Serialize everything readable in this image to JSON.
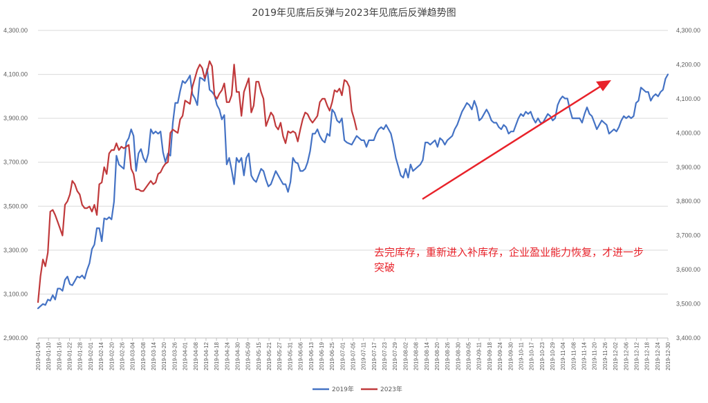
{
  "chart_data": {
    "type": "line",
    "title": "2019年见底后反弹与2023年见底后反弹趋势图",
    "y_left": {
      "ticks": [
        "2,900.00",
        "3,100.00",
        "3,300.00",
        "3,500.00",
        "3,700.00",
        "3,900.00",
        "4,100.00",
        "4,300.00"
      ],
      "ylim": [
        2900,
        4300
      ]
    },
    "y_right": {
      "ticks": [
        "3,400.00",
        "3,500.00",
        "3,600.00",
        "3,700.00",
        "3,800.00",
        "3,900.00",
        "4,000.00",
        "4,100.00",
        "4,200.00",
        "4,300.00"
      ],
      "ylim": [
        3400,
        4300
      ]
    },
    "x_ticks": [
      "2019-01-04",
      "2019-01-10",
      "2019-01-16",
      "2019-01-22",
      "2019-01-28",
      "2019-02-01",
      "2019-02-14",
      "2019-02-20",
      "2019-02-26",
      "2019-03-04",
      "2019-03-08",
      "2019-03-14",
      "2019-03-20",
      "2019-03-26",
      "2019-04-01",
      "2019-04-08",
      "2019-04-12",
      "2019-04-18",
      "2019-04-24",
      "2019-04-30",
      "2019-05-09",
      "2019-05-15",
      "2019-05-21",
      "2019-05-27",
      "2019-05-31",
      "2019-06-06",
      "2019-06-13",
      "2019-06-19",
      "2019-06-25",
      "2019-07-01",
      "2019-07-05",
      "2019-07-11",
      "2019-07-17",
      "2019-07-23",
      "2019-07-29",
      "2019-08-02",
      "2019-08-08",
      "2019-08-14",
      "2019-08-20",
      "2019-08-26",
      "2019-08-30",
      "2019-09-05",
      "2019-09-11",
      "2019-09-18",
      "2019-09-24",
      "2019-09-30",
      "2019-10-11",
      "2019-10-17",
      "2019-10-23",
      "2019-10-29",
      "2019-11-04",
      "2019-11-08",
      "2019-11-14",
      "2019-11-20",
      "2019-11-26",
      "2019-12-02",
      "2019-12-06",
      "2019-12-12",
      "2019-12-18",
      "2019-12-24",
      "2019-12-30"
    ],
    "series": [
      {
        "name": "2019年",
        "color": "#4472c4",
        "axis": "left",
        "values": [
          3035,
          3045,
          3055,
          3050,
          3075,
          3070,
          3095,
          3075,
          3125,
          3125,
          3115,
          3165,
          3180,
          3145,
          3140,
          3160,
          3180,
          3175,
          3185,
          3170,
          3210,
          3240,
          3305,
          3325,
          3400,
          3400,
          3340,
          3445,
          3440,
          3450,
          3440,
          3520,
          3730,
          3690,
          3680,
          3670,
          3790,
          3810,
          3850,
          3820,
          3660,
          3740,
          3760,
          3720,
          3700,
          3740,
          3850,
          3830,
          3840,
          3830,
          3840,
          3745,
          3700,
          3740,
          3730,
          3880,
          3970,
          3970,
          4025,
          4070,
          4060,
          4075,
          4095,
          4010,
          3990,
          3960,
          4085,
          4080,
          4070,
          4125,
          4030,
          4020,
          4005,
          3960,
          3940,
          3895,
          3915,
          3690,
          3720,
          3665,
          3600,
          3720,
          3700,
          3720,
          3640,
          3720,
          3740,
          3640,
          3620,
          3610,
          3640,
          3670,
          3660,
          3620,
          3590,
          3600,
          3630,
          3660,
          3640,
          3620,
          3600,
          3600,
          3565,
          3610,
          3720,
          3700,
          3695,
          3660,
          3660,
          3670,
          3700,
          3750,
          3830,
          3830,
          3850,
          3820,
          3800,
          3790,
          3830,
          3820,
          3940,
          3925,
          3890,
          3880,
          3900,
          3800,
          3790,
          3785,
          3780,
          3800,
          3820,
          3810,
          3800,
          3800,
          3770,
          3800,
          3800,
          3800,
          3830,
          3850,
          3860,
          3850,
          3870,
          3850,
          3830,
          3780,
          3720,
          3680,
          3640,
          3630,
          3670,
          3630,
          3690,
          3660,
          3670,
          3680,
          3690,
          3710,
          3790,
          3790,
          3780,
          3790,
          3800,
          3770,
          3810,
          3800,
          3780,
          3800,
          3810,
          3820,
          3850,
          3870,
          3900,
          3930,
          3950,
          3970,
          3960,
          3940,
          3980,
          3950,
          3890,
          3900,
          3920,
          3940,
          3920,
          3890,
          3880,
          3880,
          3860,
          3850,
          3870,
          3860,
          3830,
          3840,
          3840,
          3870,
          3900,
          3920,
          3910,
          3930,
          3920,
          3930,
          3900,
          3880,
          3900,
          3880,
          3880,
          3900,
          3920,
          3910,
          3890,
          3900,
          3960,
          3985,
          4000,
          3990,
          3990,
          3940,
          3900,
          3900,
          3900,
          3900,
          3880,
          3920,
          3950,
          3920,
          3910,
          3880,
          3850,
          3870,
          3890,
          3880,
          3870,
          3830,
          3840,
          3850,
          3840,
          3860,
          3890,
          3910,
          3900,
          3910,
          3900,
          3910,
          3970,
          3980,
          4040,
          4030,
          4020,
          4020,
          3980,
          4000,
          4010,
          4000,
          4020,
          4030,
          4080,
          4100
        ]
      },
      {
        "name": "2023年",
        "color": "#c0393b",
        "axis": "right",
        "values": [
          3505,
          3580,
          3630,
          3610,
          3650,
          3770,
          3775,
          3760,
          3740,
          3720,
          3700,
          3790,
          3800,
          3820,
          3860,
          3850,
          3830,
          3820,
          3790,
          3780,
          3780,
          3785,
          3770,
          3790,
          3760,
          3850,
          3855,
          3900,
          3880,
          3940,
          3950,
          3950,
          3970,
          3950,
          3960,
          3955,
          3960,
          3965,
          3895,
          3880,
          3835,
          3835,
          3830,
          3830,
          3840,
          3850,
          3860,
          3850,
          3855,
          3880,
          3885,
          3900,
          3910,
          3915,
          4000,
          4010,
          4005,
          4000,
          4040,
          4050,
          4095,
          4090,
          4085,
          4135,
          4160,
          4185,
          4200,
          4190,
          4160,
          4180,
          4210,
          4195,
          4110,
          4100,
          4115,
          4125,
          4145,
          4090,
          4090,
          4110,
          4200,
          4120,
          4120,
          4050,
          4120,
          4140,
          4160,
          4060,
          4080,
          4150,
          4150,
          4120,
          4100,
          4020,
          4040,
          4060,
          4050,
          4020,
          4010,
          4030,
          3990,
          3970,
          4005,
          4000,
          4005,
          4000,
          3975,
          4010,
          4040,
          4060,
          4055,
          4040,
          4030,
          4040,
          4050,
          4090,
          4100,
          4100,
          4080,
          4065,
          4090,
          4125,
          4120,
          4130,
          4110,
          4155,
          4150,
          4135,
          4065,
          4040,
          4010
        ]
      }
    ],
    "legend_position": "bottom",
    "annotation": {
      "text_line1": "去完库存，重新进入补库存，企业盈业能力恢复，才进一步",
      "text_line2": "突破",
      "arrow_color": "#e8222a"
    }
  }
}
